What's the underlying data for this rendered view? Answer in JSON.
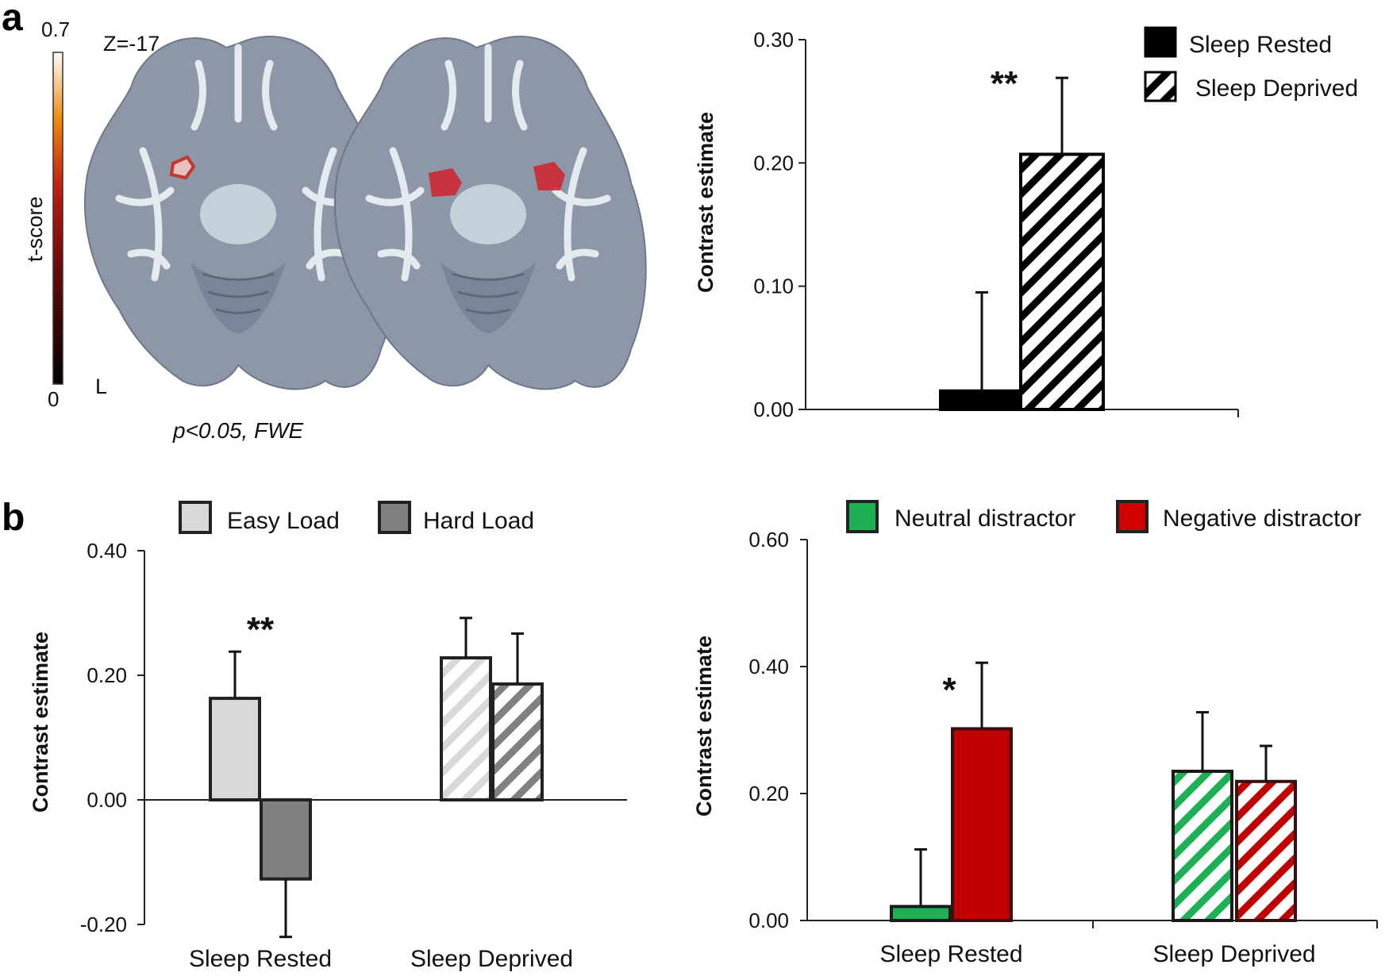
{
  "panels": {
    "a_label": "a",
    "b_label": "b"
  },
  "brain_figure": {
    "slice_label": "Z=-17",
    "colorbar_title": "t-score",
    "colorbar_max": "0.7",
    "colorbar_min": "0",
    "side_label": "L",
    "threshold_caption": "p<0.05, FWE",
    "colors": {
      "tissue": "#8d97a8",
      "white_matter": "#e4eaee",
      "activation": "#d0202a"
    }
  },
  "chart_data": [
    {
      "id": "a-right",
      "type": "bar",
      "title": "",
      "ylabel": "Contrast estimate",
      "xlabel": "",
      "ylim": [
        0,
        0.3
      ],
      "yticks": [
        "0.00",
        "0.10",
        "0.20",
        "0.30"
      ],
      "categories": [
        ""
      ],
      "series": [
        {
          "name": "Sleep Rested",
          "values": [
            0.015
          ],
          "errors": [
            0.08
          ],
          "fill": "#000000",
          "pattern": false
        },
        {
          "name": "Sleep Deprived",
          "values": [
            0.207
          ],
          "errors": [
            0.062
          ],
          "fill": "#000000",
          "pattern": true
        }
      ],
      "annotations": [
        {
          "text": "**",
          "category": 0
        }
      ],
      "legend": "top-right"
    },
    {
      "id": "b-left",
      "type": "bar",
      "title": "",
      "ylabel": "Contrast estimate",
      "xlabel": "",
      "ylim": [
        -0.2,
        0.4
      ],
      "yticks": [
        "-0.20",
        "0.00",
        "0.20",
        "0.40"
      ],
      "categories": [
        "Sleep Rested",
        "Sleep Deprived"
      ],
      "series": [
        {
          "name": "Easy Load",
          "values": [
            0.163,
            0.228
          ],
          "errors": [
            0.075,
            0.064
          ],
          "fill": "#d9d9d9",
          "pattern_categories": [
            1
          ]
        },
        {
          "name": "Hard Load",
          "values": [
            -0.127,
            0.186
          ],
          "errors": [
            0.093,
            0.081
          ],
          "fill": "#808080",
          "pattern_categories": [
            1
          ]
        }
      ],
      "annotations": [
        {
          "text": "**",
          "category": 0
        }
      ],
      "legend": "top"
    },
    {
      "id": "b-right",
      "type": "bar",
      "title": "",
      "ylabel": "Contrast estimate",
      "xlabel": "",
      "ylim": [
        0,
        0.6
      ],
      "yticks": [
        "0.00",
        "0.20",
        "0.40",
        "0.60"
      ],
      "categories": [
        "Sleep Rested",
        "Sleep Deprived"
      ],
      "series": [
        {
          "name": "Neutral distractor",
          "values": [
            0.022,
            0.235
          ],
          "errors": [
            0.09,
            0.093
          ],
          "fill": "#1db055",
          "pattern_categories": [
            1
          ]
        },
        {
          "name": "Negative distractor",
          "values": [
            0.302,
            0.219
          ],
          "errors": [
            0.104,
            0.056
          ],
          "fill": "#c00000",
          "pattern_categories": [
            1
          ]
        }
      ],
      "annotations": [
        {
          "text": "*",
          "category": 0
        }
      ],
      "legend": "top"
    }
  ]
}
